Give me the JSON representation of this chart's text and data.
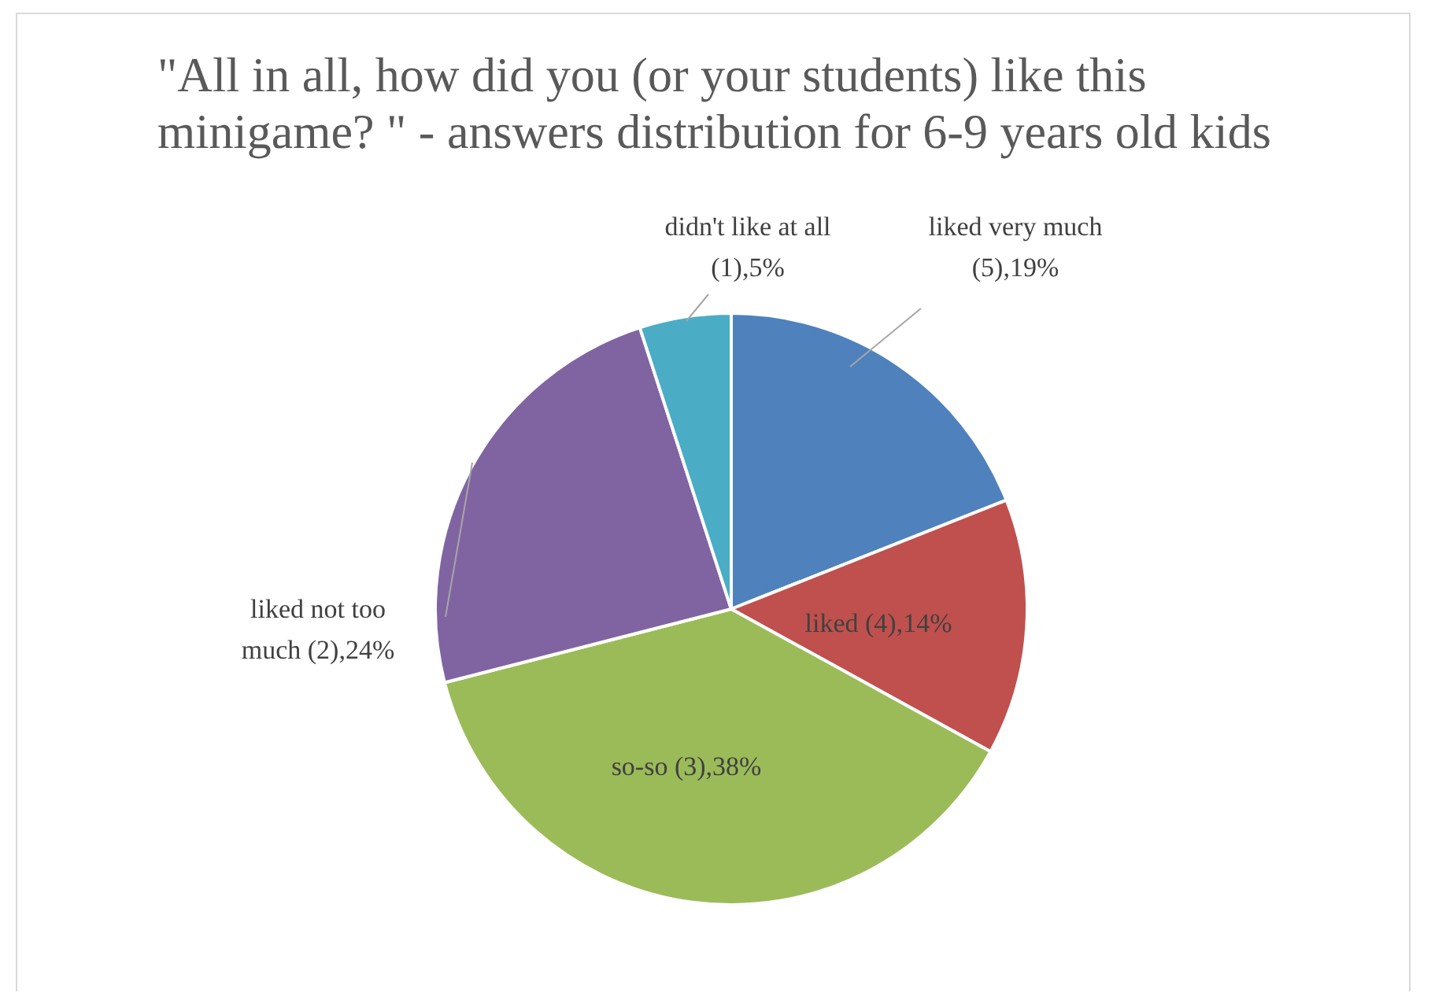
{
  "chart_data": {
    "type": "pie",
    "title": "\"All in all, how did you (or your students) like this minigame? \" - answers distribution for 6-9 years old kids",
    "categories": [
      "liked very much (5)",
      "liked (4)",
      "so-so (3)",
      "liked not too much (2)",
      "didn't like at all (1)"
    ],
    "values": [
      19,
      14,
      38,
      24,
      5
    ],
    "colors": [
      "#4f81bd",
      "#c0504d",
      "#9bbb59",
      "#8064a2",
      "#4bacc6"
    ],
    "value_labels": [
      "19%",
      "14%",
      "38%",
      "24%",
      "5%"
    ]
  }
}
